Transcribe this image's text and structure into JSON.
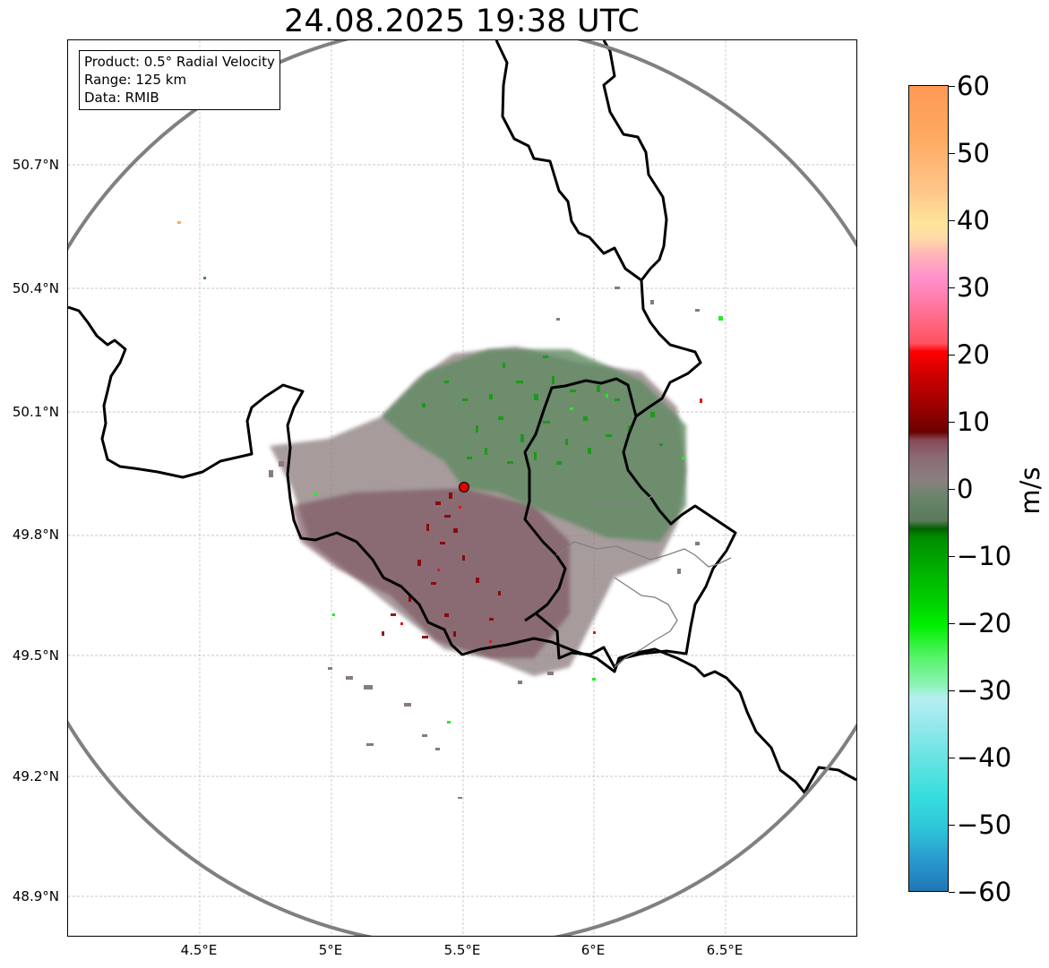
{
  "title": "24.08.2025 19:38 UTC",
  "info": {
    "product": "Product: 0.5° Radial Velocity",
    "range": "Range: 125 km",
    "source": "Data: RMIB"
  },
  "lat_labels": [
    "50.7°N",
    "50.4°N",
    "50.1°N",
    "49.8°N",
    "49.5°N",
    "49.2°N",
    "48.9°N"
  ],
  "lon_labels": [
    "4.5°E",
    "5°E",
    "5.5°E",
    "6°E",
    "6.5°E"
  ],
  "colorbar": {
    "unit": "m/s",
    "ticks": [
      "60",
      "50",
      "40",
      "30",
      "20",
      "10",
      "0",
      "−10",
      "−20",
      "−30",
      "−40",
      "−50",
      "−60"
    ],
    "range": [
      -60,
      60
    ]
  },
  "radar_site": {
    "lon": 5.51,
    "lat": 49.91
  },
  "colors": {
    "range_ring": "#808080",
    "border": "#000000",
    "site_marker": "#e00000",
    "approaching": "#00a000",
    "receding": "#9a0000",
    "near_zero": "#8a7a7c"
  }
}
